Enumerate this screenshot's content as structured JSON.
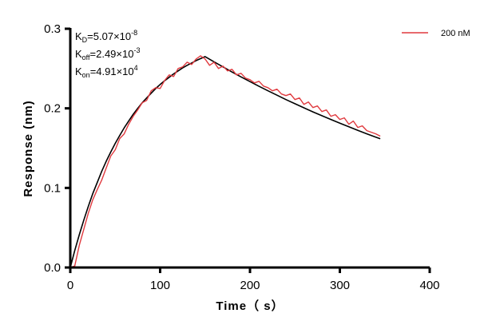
{
  "chart_data": {
    "type": "line",
    "xlabel": "Time（ s）",
    "ylabel": "Response (nm)",
    "xlim": [
      0,
      400
    ],
    "ylim": [
      0,
      0.3
    ],
    "x_ticks": [
      "0",
      "100",
      "200",
      "300",
      "400"
    ],
    "y_ticks": [
      "0.0",
      "0.1",
      "0.2",
      "0.3"
    ],
    "grid": false,
    "legend_position": "top-right",
    "annotations": {
      "kd": {
        "sym": "K",
        "sub": "D",
        "val": "=5.07×10",
        "exp": "-8"
      },
      "koff": {
        "sym": "K",
        "sub": "off",
        "val": "=2.49×10",
        "exp": "-3"
      },
      "kon": {
        "sym": "K",
        "sub": "on",
        "val": "=4.91×10",
        "exp": "4"
      }
    },
    "series": [
      {
        "name": "200 nM",
        "color": "#e0393e",
        "x": [
          0,
          5,
          10,
          15,
          20,
          25,
          30,
          35,
          40,
          45,
          50,
          55,
          60,
          65,
          70,
          75,
          80,
          85,
          90,
          95,
          100,
          105,
          110,
          115,
          120,
          125,
          130,
          135,
          140,
          145,
          150,
          155,
          160,
          165,
          170,
          175,
          180,
          185,
          190,
          195,
          200,
          205,
          210,
          215,
          220,
          225,
          230,
          235,
          240,
          245,
          250,
          255,
          260,
          265,
          270,
          275,
          280,
          285,
          290,
          295,
          300,
          305,
          310,
          315,
          320,
          325,
          330,
          335,
          340,
          345
        ],
        "y": [
          0.0,
          0.002,
          0.028,
          0.048,
          0.068,
          0.085,
          0.098,
          0.11,
          0.125,
          0.14,
          0.148,
          0.162,
          0.168,
          0.18,
          0.19,
          0.198,
          0.207,
          0.21,
          0.222,
          0.226,
          0.225,
          0.235,
          0.242,
          0.24,
          0.25,
          0.252,
          0.258,
          0.255,
          0.262,
          0.266,
          0.262,
          0.254,
          0.258,
          0.25,
          0.253,
          0.247,
          0.249,
          0.242,
          0.244,
          0.238,
          0.236,
          0.232,
          0.234,
          0.228,
          0.226,
          0.222,
          0.224,
          0.218,
          0.216,
          0.218,
          0.211,
          0.213,
          0.205,
          0.208,
          0.201,
          0.203,
          0.196,
          0.198,
          0.19,
          0.192,
          0.186,
          0.188,
          0.18,
          0.184,
          0.176,
          0.178,
          0.172,
          0.17,
          0.168,
          0.165
        ]
      },
      {
        "color": "#000000",
        "x": [
          0,
          5,
          10,
          15,
          20,
          25,
          30,
          35,
          40,
          45,
          50,
          55,
          60,
          65,
          70,
          75,
          80,
          85,
          90,
          95,
          100,
          105,
          110,
          115,
          120,
          125,
          130,
          135,
          140,
          145,
          150,
          160,
          170,
          180,
          190,
          200,
          210,
          220,
          230,
          240,
          250,
          260,
          270,
          280,
          290,
          300,
          310,
          320,
          330,
          340,
          345
        ],
        "y": [
          0,
          0.0214,
          0.0412,
          0.0595,
          0.0767,
          0.0927,
          0.107,
          0.121,
          0.1335,
          0.145,
          0.156,
          0.166,
          0.1755,
          0.184,
          0.1925,
          0.2,
          0.207,
          0.213,
          0.219,
          0.2248,
          0.23,
          0.2347,
          0.239,
          0.2433,
          0.247,
          0.2507,
          0.254,
          0.257,
          0.26,
          0.2625,
          0.265,
          0.2585,
          0.252,
          0.2456,
          0.2395,
          0.2336,
          0.2277,
          0.222,
          0.2165,
          0.211,
          0.2058,
          0.2007,
          0.1956,
          0.1907,
          0.186,
          0.1813,
          0.1768,
          0.1724,
          0.168,
          0.1638,
          0.1618
        ]
      }
    ]
  }
}
